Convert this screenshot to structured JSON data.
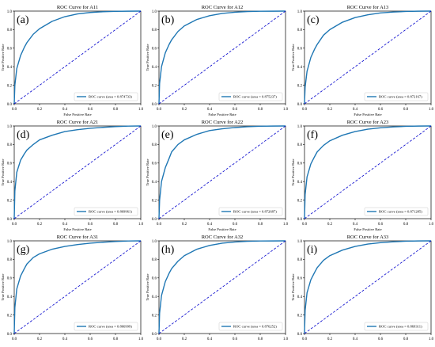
{
  "chart_data": [
    {
      "type": "line",
      "panel_label": "(a)",
      "title": "ROC Curve for A11",
      "xlabel": "False Positive Rate",
      "ylabel": "True Positive Rate",
      "xlim": [
        0,
        1
      ],
      "ylim": [
        0,
        1
      ],
      "x_ticks": [
        "0.0",
        "0.2",
        "0.4",
        "0.6",
        "0.8",
        "1.0"
      ],
      "y_ticks": [
        "0.0",
        "0.2",
        "0.4",
        "0.6",
        "0.8",
        "1.0"
      ],
      "legend_placement": "lower-right",
      "grid": false,
      "series": [
        {
          "name": "ROC curve (area = 0.874733)",
          "color": "#1f77b4",
          "x": [
            0,
            0.005,
            0.02,
            0.05,
            0.08,
            0.1,
            0.15,
            0.2,
            0.3,
            0.4,
            0.5,
            0.6,
            0.7,
            0.8,
            0.9,
            1.0
          ],
          "y": [
            0,
            0.2,
            0.38,
            0.52,
            0.61,
            0.66,
            0.75,
            0.81,
            0.89,
            0.94,
            0.97,
            0.985,
            0.993,
            0.997,
            0.999,
            1.0
          ]
        },
        {
          "name": "",
          "color": "#0000cc",
          "dashed": true,
          "x": [
            0,
            1
          ],
          "y": [
            0,
            1
          ]
        }
      ]
    },
    {
      "type": "line",
      "panel_label": "(b)",
      "title": "ROC Curve for A12",
      "xlabel": "False Positive Rate",
      "ylabel": "True Positive Rate",
      "xlim": [
        0,
        1
      ],
      "ylim": [
        0,
        1
      ],
      "x_ticks": [
        "0.0",
        "0.2",
        "0.4",
        "0.6",
        "0.8",
        "1.0"
      ],
      "y_ticks": [
        "0.0",
        "0.2",
        "0.4",
        "0.6",
        "0.8",
        "1.0"
      ],
      "legend_placement": "lower-right",
      "grid": false,
      "series": [
        {
          "name": "ROC curve (area = 0.875237)",
          "color": "#1f77b4",
          "x": [
            0,
            0.005,
            0.02,
            0.05,
            0.08,
            0.1,
            0.15,
            0.2,
            0.3,
            0.4,
            0.5,
            0.6,
            0.7,
            0.8,
            0.9,
            1.0
          ],
          "y": [
            0,
            0.22,
            0.4,
            0.55,
            0.64,
            0.69,
            0.78,
            0.84,
            0.91,
            0.95,
            0.975,
            0.988,
            0.995,
            0.998,
            0.999,
            1.0
          ]
        },
        {
          "name": "",
          "color": "#0000cc",
          "dashed": true,
          "x": [
            0,
            1
          ],
          "y": [
            0,
            1
          ]
        }
      ]
    },
    {
      "type": "line",
      "panel_label": "(c)",
      "title": "ROC Curve for A13",
      "xlabel": "False Positive Rate",
      "ylabel": "True Positive Rate",
      "xlim": [
        0,
        1
      ],
      "ylim": [
        0,
        1
      ],
      "x_ticks": [
        "0.0",
        "0.2",
        "0.4",
        "0.6",
        "0.8",
        "1.0"
      ],
      "y_ticks": [
        "0.0",
        "0.2",
        "0.4",
        "0.6",
        "0.8",
        "1.0"
      ],
      "legend_placement": "lower-right",
      "grid": false,
      "series": [
        {
          "name": "ROC curve (area = 0.872167)",
          "color": "#1f77b4",
          "x": [
            0,
            0.005,
            0.02,
            0.05,
            0.08,
            0.1,
            0.15,
            0.2,
            0.3,
            0.4,
            0.5,
            0.6,
            0.7,
            0.8,
            0.9,
            1.0
          ],
          "y": [
            0,
            0.18,
            0.35,
            0.5,
            0.59,
            0.64,
            0.74,
            0.8,
            0.88,
            0.93,
            0.96,
            0.98,
            0.99,
            0.996,
            0.999,
            1.0
          ]
        },
        {
          "name": "",
          "color": "#0000cc",
          "dashed": true,
          "x": [
            0,
            1
          ],
          "y": [
            0,
            1
          ]
        }
      ]
    },
    {
      "type": "line",
      "panel_label": "(d)",
      "title": "ROC Curve for A21",
      "xlabel": "False Positive Rate",
      "ylabel": "True Positive Rate",
      "xlim": [
        0,
        1
      ],
      "ylim": [
        0,
        1
      ],
      "x_ticks": [
        "0.0",
        "0.2",
        "0.4",
        "0.6",
        "0.8",
        "1.0"
      ],
      "y_ticks": [
        "0.0",
        "0.2",
        "0.4",
        "0.6",
        "0.8",
        "1.0"
      ],
      "legend_placement": "lower-right",
      "grid": false,
      "series": [
        {
          "name": "ROC curve (area = 0.869961)",
          "color": "#1f77b4",
          "x": [
            0,
            0.005,
            0.02,
            0.05,
            0.08,
            0.1,
            0.15,
            0.2,
            0.3,
            0.4,
            0.5,
            0.6,
            0.7,
            0.8,
            0.9,
            1.0
          ],
          "y": [
            0,
            0.3,
            0.5,
            0.63,
            0.7,
            0.74,
            0.8,
            0.85,
            0.9,
            0.94,
            0.96,
            0.975,
            0.985,
            0.993,
            0.998,
            1.0
          ]
        },
        {
          "name": "",
          "color": "#0000cc",
          "dashed": true,
          "x": [
            0,
            1
          ],
          "y": [
            0,
            1
          ]
        }
      ]
    },
    {
      "type": "line",
      "panel_label": "(e)",
      "title": "ROC Curve for A22",
      "xlabel": "False Positive Rate",
      "ylabel": "True Positive Rate",
      "xlim": [
        0,
        1
      ],
      "ylim": [
        0,
        1
      ],
      "x_ticks": [
        "0.0",
        "0.2",
        "0.4",
        "0.6",
        "0.8",
        "1.0"
      ],
      "y_ticks": [
        "0.0",
        "0.2",
        "0.4",
        "0.6",
        "0.8",
        "1.0"
      ],
      "legend_placement": "lower-right",
      "grid": false,
      "series": [
        {
          "name": "ROC curve (area = 0.872687)",
          "color": "#1f77b4",
          "x": [
            0,
            0.005,
            0.02,
            0.05,
            0.08,
            0.1,
            0.15,
            0.2,
            0.3,
            0.4,
            0.5,
            0.6,
            0.7,
            0.8,
            0.9,
            1.0
          ],
          "y": [
            0,
            0.2,
            0.4,
            0.55,
            0.65,
            0.72,
            0.8,
            0.85,
            0.91,
            0.95,
            0.97,
            0.983,
            0.992,
            0.997,
            0.999,
            1.0
          ]
        },
        {
          "name": "",
          "color": "#0000cc",
          "dashed": true,
          "x": [
            0,
            1
          ],
          "y": [
            0,
            1
          ]
        }
      ]
    },
    {
      "type": "line",
      "panel_label": "(f)",
      "title": "ROC Curve for A23",
      "xlabel": "False Positive Rate",
      "ylabel": "True Positive Rate",
      "xlim": [
        0,
        1
      ],
      "ylim": [
        0,
        1
      ],
      "x_ticks": [
        "0.0",
        "0.2",
        "0.4",
        "0.6",
        "0.8",
        "1.0"
      ],
      "y_ticks": [
        "0.0",
        "0.2",
        "0.4",
        "0.6",
        "0.8",
        "1.0"
      ],
      "legend_placement": "lower-right",
      "grid": false,
      "series": [
        {
          "name": "ROC curve (area = 0.871285)",
          "color": "#1f77b4",
          "x": [
            0,
            0.005,
            0.02,
            0.05,
            0.08,
            0.1,
            0.15,
            0.2,
            0.3,
            0.4,
            0.5,
            0.6,
            0.7,
            0.8,
            0.9,
            1.0
          ],
          "y": [
            0,
            0.26,
            0.45,
            0.59,
            0.67,
            0.72,
            0.79,
            0.84,
            0.9,
            0.94,
            0.965,
            0.98,
            0.99,
            0.996,
            0.999,
            1.0
          ]
        },
        {
          "name": "",
          "color": "#0000cc",
          "dashed": true,
          "x": [
            0,
            1
          ],
          "y": [
            0,
            1
          ]
        }
      ]
    },
    {
      "type": "line",
      "panel_label": "(g)",
      "title": "ROC Curve for A31",
      "xlabel": "False Positive Rate",
      "ylabel": "True Positive Rate",
      "xlim": [
        0,
        1
      ],
      "ylim": [
        0,
        1
      ],
      "x_ticks": [
        "0.0",
        "0.2",
        "0.4",
        "0.6",
        "0.8",
        "1.0"
      ],
      "y_ticks": [
        "0.0",
        "0.2",
        "0.4",
        "0.6",
        "0.8",
        "1.0"
      ],
      "legend_placement": "lower-right",
      "grid": false,
      "series": [
        {
          "name": "ROC curve (area = 0.866999)",
          "color": "#1f77b4",
          "x": [
            0,
            0.005,
            0.02,
            0.05,
            0.08,
            0.1,
            0.15,
            0.2,
            0.3,
            0.4,
            0.5,
            0.6,
            0.7,
            0.8,
            0.9,
            1.0
          ],
          "y": [
            0,
            0.28,
            0.48,
            0.62,
            0.7,
            0.75,
            0.82,
            0.86,
            0.91,
            0.94,
            0.96,
            0.975,
            0.985,
            0.993,
            0.998,
            1.0
          ]
        },
        {
          "name": "",
          "color": "#0000cc",
          "dashed": true,
          "x": [
            0,
            1
          ],
          "y": [
            0,
            1
          ]
        }
      ]
    },
    {
      "type": "line",
      "panel_label": "(h)",
      "title": "ROC Curve for A32",
      "xlabel": "False Positive Rate",
      "ylabel": "True Positive Rate",
      "xlim": [
        0,
        1
      ],
      "ylim": [
        0,
        1
      ],
      "x_ticks": [
        "0.0",
        "0.2",
        "0.4",
        "0.6",
        "0.8",
        "1.0"
      ],
      "y_ticks": [
        "0.0",
        "0.2",
        "0.4",
        "0.6",
        "0.8",
        "1.0"
      ],
      "legend_placement": "lower-right",
      "grid": false,
      "series": [
        {
          "name": "ROC curve (area = 0.876252)",
          "color": "#1f77b4",
          "x": [
            0,
            0.005,
            0.02,
            0.05,
            0.08,
            0.1,
            0.15,
            0.2,
            0.3,
            0.4,
            0.5,
            0.6,
            0.7,
            0.8,
            0.9,
            1.0
          ],
          "y": [
            0,
            0.22,
            0.41,
            0.56,
            0.65,
            0.7,
            0.78,
            0.84,
            0.91,
            0.95,
            0.975,
            0.988,
            0.995,
            0.998,
            0.999,
            1.0
          ]
        },
        {
          "name": "",
          "color": "#0000cc",
          "dashed": true,
          "x": [
            0,
            1
          ],
          "y": [
            0,
            1
          ]
        }
      ]
    },
    {
      "type": "line",
      "panel_label": "(i)",
      "title": "ROC Curve for A33",
      "xlabel": "False Positive Rate",
      "ylabel": "True Positive Rate",
      "xlim": [
        0,
        1
      ],
      "ylim": [
        0,
        1
      ],
      "x_ticks": [
        "0.0",
        "0.2",
        "0.4",
        "0.6",
        "0.8",
        "1.0"
      ],
      "y_ticks": [
        "0.0",
        "0.2",
        "0.4",
        "0.6",
        "0.8",
        "1.0"
      ],
      "legend_placement": "lower-right",
      "grid": false,
      "series": [
        {
          "name": "ROC curve (area = 0.869311)",
          "color": "#1f77b4",
          "x": [
            0,
            0.005,
            0.02,
            0.05,
            0.08,
            0.1,
            0.15,
            0.2,
            0.3,
            0.4,
            0.5,
            0.6,
            0.7,
            0.8,
            0.9,
            1.0
          ],
          "y": [
            0,
            0.25,
            0.44,
            0.58,
            0.66,
            0.71,
            0.79,
            0.84,
            0.9,
            0.94,
            0.965,
            0.98,
            0.99,
            0.996,
            0.999,
            1.0
          ]
        },
        {
          "name": "",
          "color": "#0000cc",
          "dashed": true,
          "x": [
            0,
            1
          ],
          "y": [
            0,
            1
          ]
        }
      ]
    }
  ]
}
